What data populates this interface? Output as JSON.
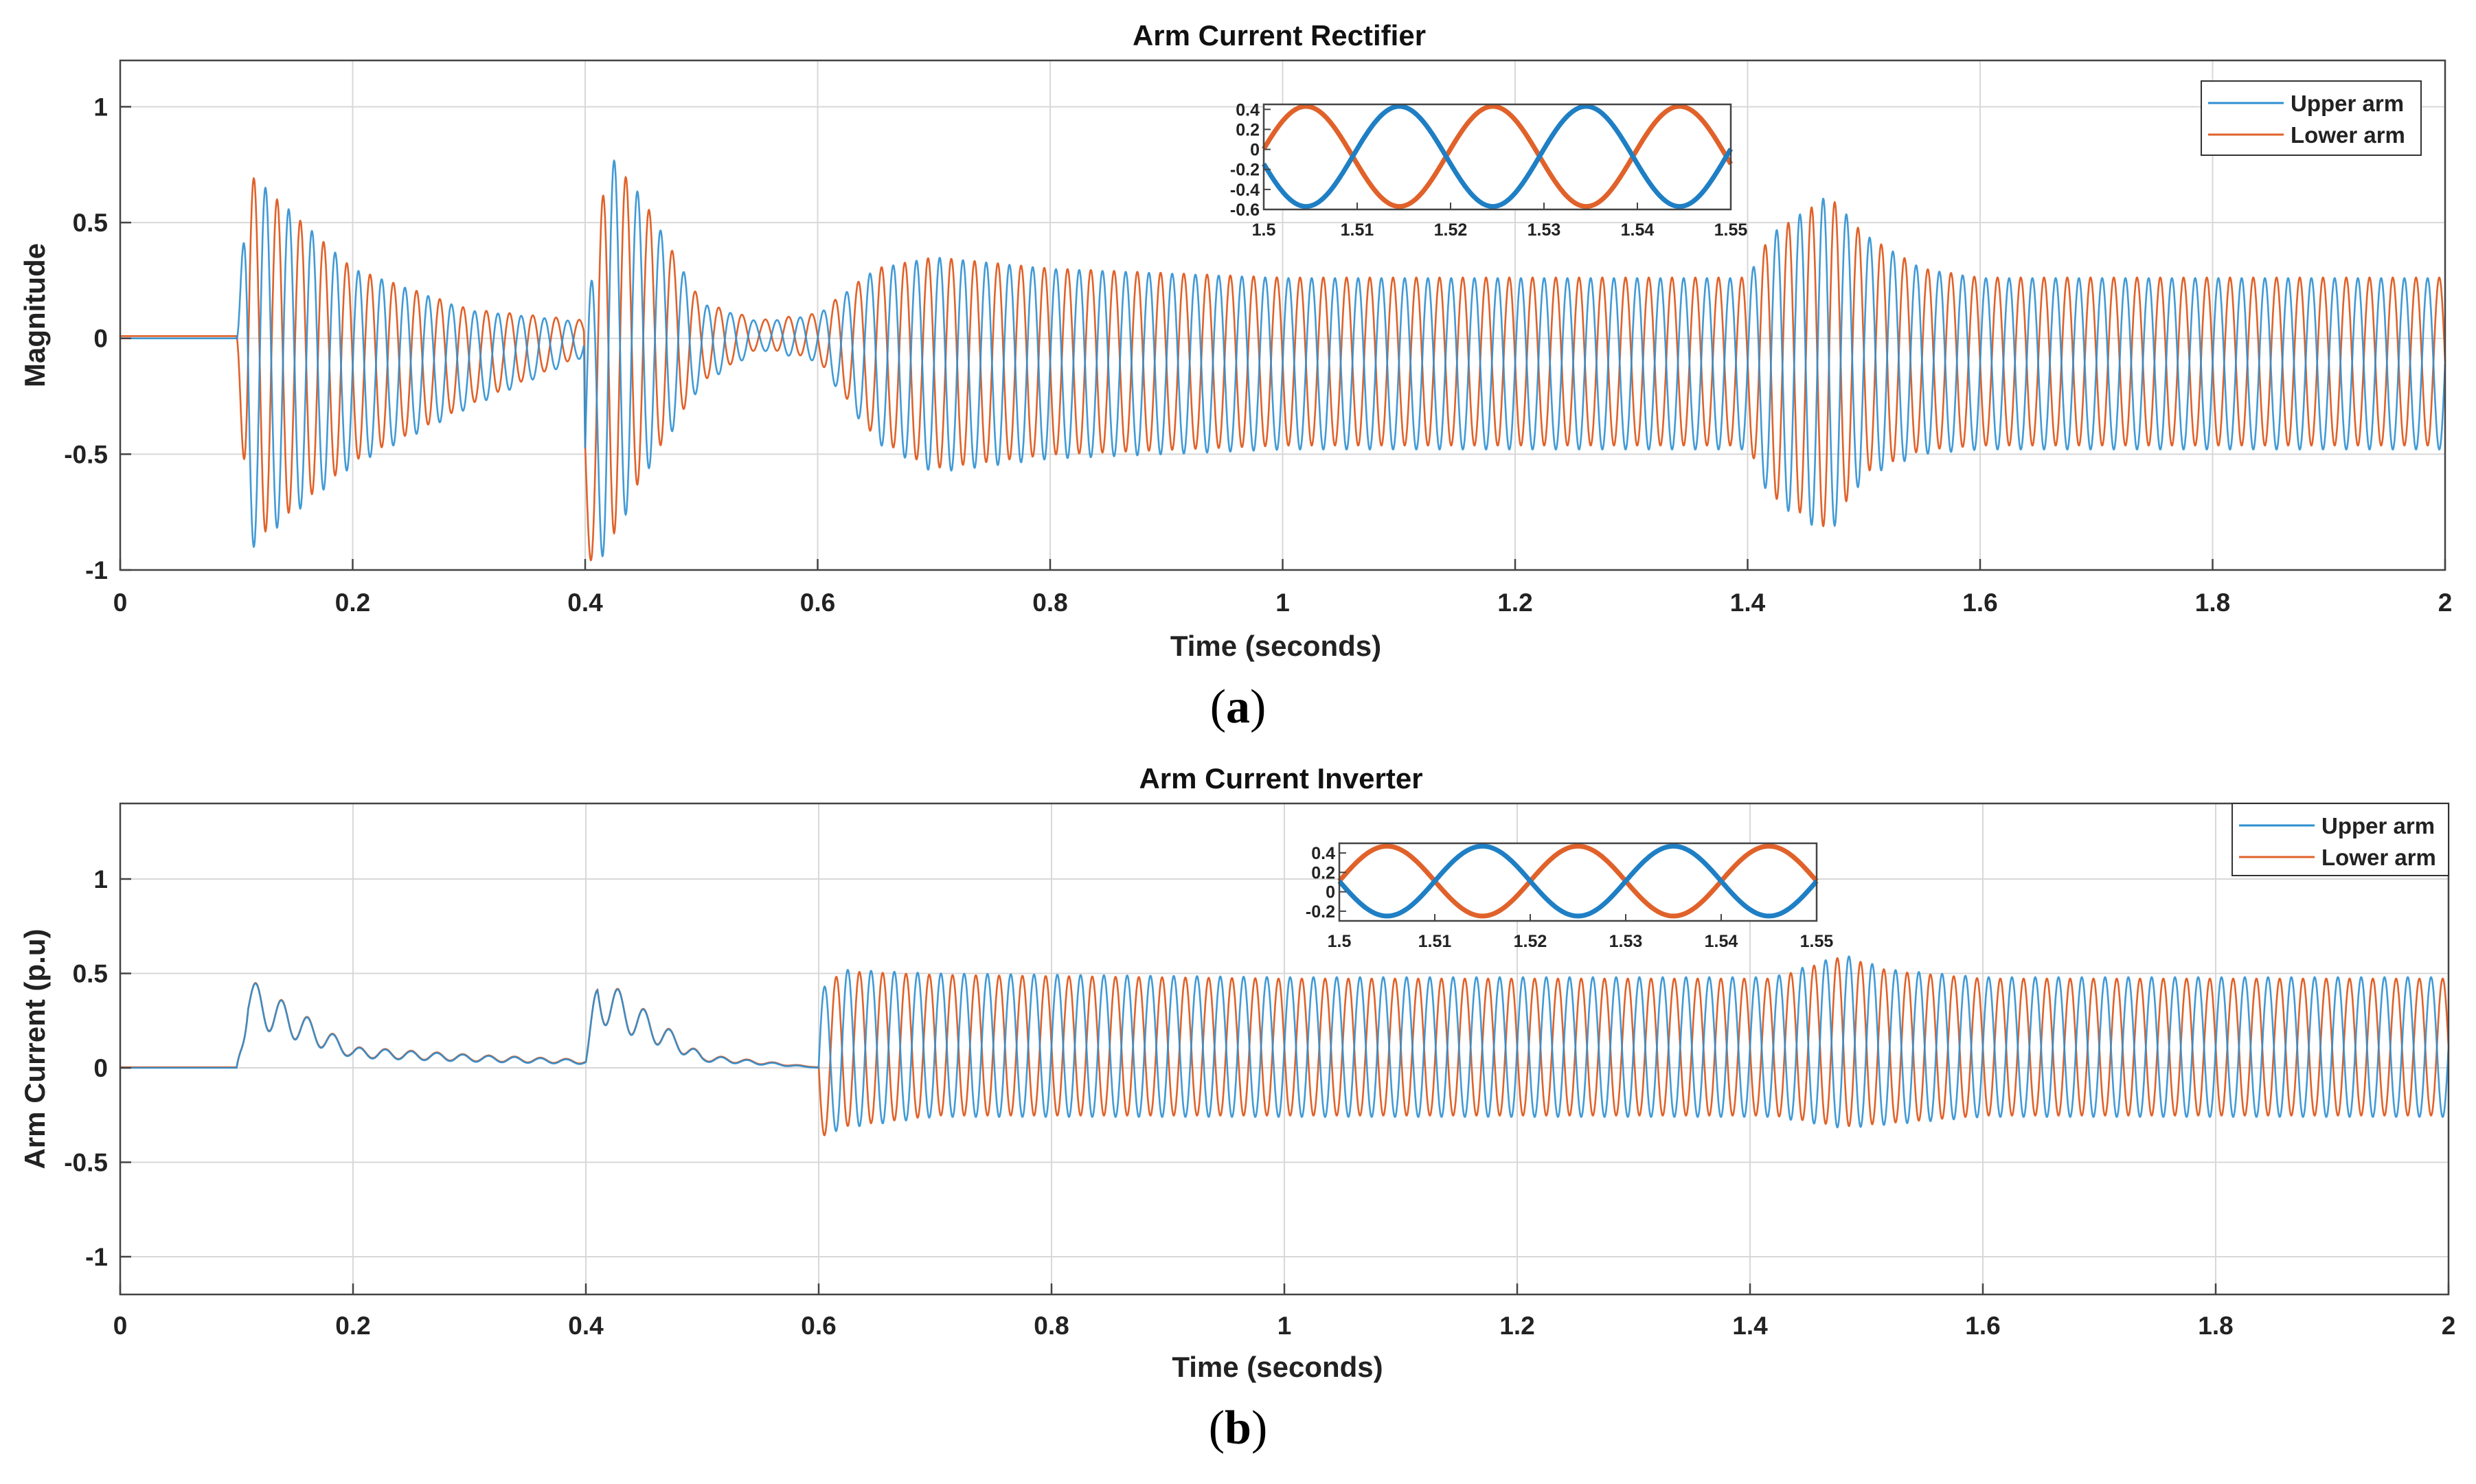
{
  "colors": {
    "upper": "#2e8fd0",
    "lower": "#e0622a",
    "axis": "#444444",
    "grid": "#d8d8d8"
  },
  "chart_data": [
    {
      "id": "a",
      "type": "line",
      "title": "Arm Current Rectifier",
      "xlabel": "Time (seconds)",
      "ylabel": "Magnitude",
      "xlim": [
        0,
        2
      ],
      "ylim": [
        -1,
        1.2
      ],
      "xticks": [
        0,
        0.2,
        0.4,
        0.6,
        0.8,
        1,
        1.2,
        1.4,
        1.6,
        1.8,
        2
      ],
      "xtick_labels": [
        "0",
        "0.2",
        "0.4",
        "0.6",
        "0.8",
        "1",
        "1.2",
        "1.4",
        "1.6",
        "1.8",
        "2"
      ],
      "yticks": [
        -1,
        -0.5,
        0,
        0.5,
        1
      ],
      "ytick_labels": [
        "-1",
        "-0.5",
        "0",
        "0.5",
        "1"
      ],
      "grid": true,
      "legend_position": "top-right",
      "series": [
        {
          "name": "Upper arm",
          "color": "#2e8fd0"
        },
        {
          "name": "Lower arm",
          "color": "#e0622a"
        }
      ],
      "frequency_hz": 50,
      "envelope": {
        "t": [
          0,
          0.1,
          0.11,
          0.2,
          0.3,
          0.399,
          0.4,
          0.42,
          0.45,
          0.5,
          0.55,
          0.6,
          0.65,
          0.7,
          0.8,
          1.0,
          1.4,
          1.42,
          1.47,
          1.5,
          1.55,
          1.6,
          2.0
        ],
        "upper": [
          0,
          0,
          0.72,
          0.3,
          0.12,
          0.07,
          0.05,
          0.8,
          0.6,
          0.15,
          0.07,
          0.1,
          0.3,
          0.35,
          0.3,
          0.26,
          0.26,
          0.45,
          0.62,
          0.45,
          0.3,
          0.26,
          0.26
        ],
        "lower": [
          0,
          0,
          -0.92,
          -0.55,
          -0.3,
          -0.08,
          -1.0,
          -0.92,
          -0.6,
          -0.2,
          -0.05,
          -0.1,
          -0.45,
          -0.58,
          -0.52,
          -0.48,
          -0.48,
          -0.7,
          -0.85,
          -0.6,
          -0.5,
          -0.48,
          -0.48
        ]
      },
      "inset": {
        "xlim": [
          1.5,
          1.55
        ],
        "ylim": [
          -0.6,
          0.45
        ],
        "xticks": [
          1.5,
          1.51,
          1.52,
          1.53,
          1.54,
          1.55
        ],
        "xtick_labels": [
          "1.5",
          "1.51",
          "1.52",
          "1.53",
          "1.54",
          "1.55"
        ],
        "yticks": [
          -0.6,
          -0.4,
          -0.2,
          0,
          0.2,
          0.4
        ],
        "ytick_labels": [
          "-0.6",
          "-0.4",
          "-0.2",
          "0",
          "0.2",
          "0.4"
        ],
        "offset": -0.07,
        "amplitude": 0.5
      }
    },
    {
      "id": "b",
      "type": "line",
      "title": "Arm Current Inverter",
      "xlabel": "Time (seconds)",
      "ylabel": "Arm Current (p.u)",
      "xlim": [
        0,
        2
      ],
      "ylim": [
        -1.2,
        1.4
      ],
      "xticks": [
        0,
        0.2,
        0.4,
        0.6,
        0.8,
        1,
        1.2,
        1.4,
        1.6,
        1.8,
        2
      ],
      "xtick_labels": [
        "0",
        "0.2",
        "0.4",
        "0.6",
        "0.8",
        "1",
        "1.2",
        "1.4",
        "1.6",
        "1.8",
        "2"
      ],
      "yticks": [
        -1,
        -0.5,
        0,
        0.5,
        1
      ],
      "ytick_labels": [
        "-1",
        "-0.5",
        "0",
        "0.5",
        "1"
      ],
      "grid": true,
      "legend_position": "top-right",
      "series": [
        {
          "name": "Upper arm",
          "color": "#2e8fd0"
        },
        {
          "name": "Lower arm",
          "color": "#e0622a"
        }
      ],
      "frequency_hz": 50,
      "transient": {
        "t": [
          0,
          0.1,
          0.11,
          0.2,
          0.3,
          0.4,
          0.41,
          0.5,
          0.6
        ],
        "v": [
          0,
          0,
          0.35,
          0.08,
          0.05,
          0.03,
          0.37,
          0.05,
          0.0
        ]
      },
      "envelope": {
        "t": [
          0.6,
          0.62,
          0.7,
          1.0,
          1.42,
          1.48,
          1.52,
          1.6,
          2.0
        ],
        "upper": [
          0.4,
          0.52,
          0.5,
          0.48,
          0.48,
          0.6,
          0.52,
          0.48,
          0.48
        ],
        "lower": [
          -0.38,
          -0.32,
          -0.26,
          -0.26,
          -0.26,
          -0.32,
          -0.3,
          -0.26,
          -0.26
        ]
      },
      "inset": {
        "xlim": [
          1.5,
          1.55
        ],
        "ylim": [
          -0.3,
          0.5
        ],
        "xticks": [
          1.5,
          1.51,
          1.52,
          1.53,
          1.54,
          1.55
        ],
        "xtick_labels": [
          "1.5",
          "1.51",
          "1.52",
          "1.53",
          "1.54",
          "1.55"
        ],
        "yticks": [
          -0.2,
          0,
          0.2,
          0.4
        ],
        "ytick_labels": [
          "-0.2",
          "0",
          "0.2",
          "0.4"
        ],
        "offset": 0.11,
        "amplitude": 0.36
      }
    }
  ],
  "captions": [
    {
      "open": "(",
      "letter": "a",
      "close": ")"
    },
    {
      "open": "(",
      "letter": "b",
      "close": ")"
    }
  ]
}
